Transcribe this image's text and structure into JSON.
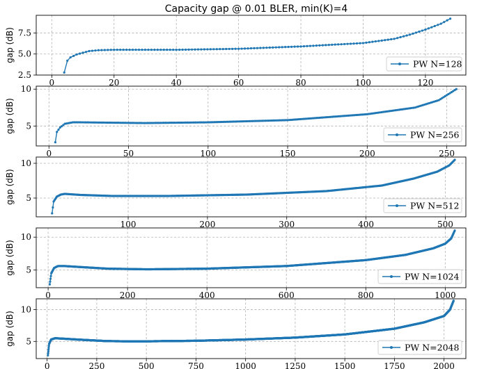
{
  "title": "Capacity gap @ 0.01 BLER, min(K)=4",
  "colors": {
    "series": "#1f77b4",
    "grid": "#b0b0b0",
    "frame": "#000000",
    "legend_edge": "#cccccc"
  },
  "chart_data": [
    {
      "type": "line",
      "ylabel": "gap (dB)",
      "legend": "PW N=128",
      "legend_position": "lower-right",
      "grid": true,
      "xlim": [
        -5,
        133
      ],
      "ylim": [
        2.5,
        9.6
      ],
      "xticks": [
        0,
        20,
        40,
        60,
        80,
        100,
        120
      ],
      "yticks": [
        2.5,
        5.0,
        7.5
      ],
      "ytick_labels": [
        "2.5",
        "5.0",
        "7.5"
      ],
      "n": 128,
      "curve": [
        [
          4,
          2.8
        ],
        [
          5,
          4.2
        ],
        [
          6,
          4.6
        ],
        [
          8,
          4.95
        ],
        [
          10,
          5.15
        ],
        [
          12,
          5.35
        ],
        [
          15,
          5.45
        ],
        [
          20,
          5.5
        ],
        [
          30,
          5.5
        ],
        [
          40,
          5.5
        ],
        [
          60,
          5.62
        ],
        [
          80,
          5.9
        ],
        [
          100,
          6.3
        ],
        [
          110,
          6.8
        ],
        [
          115,
          7.3
        ],
        [
          120,
          7.9
        ],
        [
          125,
          8.6
        ],
        [
          128,
          9.2
        ]
      ]
    },
    {
      "type": "line",
      "ylabel": "gap (dB)",
      "legend": "PW N=256",
      "legend_position": "lower-right",
      "grid": true,
      "xlim": [
        -8,
        262
      ],
      "ylim": [
        2.3,
        10.4
      ],
      "xticks": [
        0,
        50,
        100,
        150,
        200,
        250
      ],
      "yticks": [
        5,
        10
      ],
      "ytick_labels": [
        "5",
        "10"
      ],
      "n": 256,
      "curve": [
        [
          4,
          2.8
        ],
        [
          5,
          4.2
        ],
        [
          7,
          4.8
        ],
        [
          10,
          5.3
        ],
        [
          15,
          5.5
        ],
        [
          20,
          5.5
        ],
        [
          40,
          5.45
        ],
        [
          60,
          5.4
        ],
        [
          100,
          5.5
        ],
        [
          150,
          5.8
        ],
        [
          200,
          6.6
        ],
        [
          230,
          7.5
        ],
        [
          245,
          8.5
        ],
        [
          256,
          10.0
        ]
      ]
    },
    {
      "type": "line",
      "ylabel": "gap (dB)",
      "legend": "PW N=512",
      "legend_position": "lower-right",
      "grid": true,
      "xlim": [
        -16,
        526
      ],
      "ylim": [
        2.3,
        10.9
      ],
      "xticks": [
        100,
        200,
        300,
        400,
        500
      ],
      "yticks": [
        5,
        10
      ],
      "ytick_labels": [
        "5",
        "10"
      ],
      "n": 512,
      "curve": [
        [
          4,
          2.8
        ],
        [
          6,
          4.5
        ],
        [
          10,
          5.2
        ],
        [
          15,
          5.5
        ],
        [
          20,
          5.6
        ],
        [
          40,
          5.45
        ],
        [
          80,
          5.3
        ],
        [
          150,
          5.3
        ],
        [
          250,
          5.5
        ],
        [
          350,
          6.0
        ],
        [
          420,
          6.8
        ],
        [
          460,
          7.8
        ],
        [
          490,
          8.8
        ],
        [
          505,
          9.7
        ],
        [
          512,
          10.5
        ]
      ]
    },
    {
      "type": "line",
      "ylabel": "gap (dB)",
      "legend": "PW N=1024",
      "legend_position": "lower-right",
      "grid": true,
      "xlim": [
        -30,
        1052
      ],
      "ylim": [
        2.3,
        11.4
      ],
      "xticks": [
        0,
        200,
        400,
        600,
        800,
        1000
      ],
      "yticks": [
        5,
        10
      ],
      "ytick_labels": [
        "5",
        "10"
      ],
      "n": 1024,
      "curve": [
        [
          4,
          2.8
        ],
        [
          8,
          4.5
        ],
        [
          15,
          5.3
        ],
        [
          25,
          5.6
        ],
        [
          40,
          5.6
        ],
        [
          80,
          5.45
        ],
        [
          150,
          5.2
        ],
        [
          250,
          5.1
        ],
        [
          400,
          5.2
        ],
        [
          600,
          5.6
        ],
        [
          800,
          6.5
        ],
        [
          900,
          7.3
        ],
        [
          970,
          8.3
        ],
        [
          1000,
          9.0
        ],
        [
          1015,
          9.8
        ],
        [
          1024,
          11.0
        ]
      ]
    },
    {
      "type": "line",
      "ylabel": "gap (dB)",
      "legend": "PW N=2048",
      "legend_position": "lower-right",
      "grid": true,
      "xlim": [
        -55,
        2110
      ],
      "ylim": [
        2.3,
        11.7
      ],
      "xticks": [
        0,
        250,
        500,
        750,
        1000,
        1250,
        1500,
        1750,
        2000
      ],
      "yticks": [
        5,
        10
      ],
      "ytick_labels": [
        "5",
        "10"
      ],
      "n": 2048,
      "curve": [
        [
          4,
          2.8
        ],
        [
          10,
          4.6
        ],
        [
          20,
          5.3
        ],
        [
          40,
          5.5
        ],
        [
          70,
          5.45
        ],
        [
          150,
          5.3
        ],
        [
          300,
          5.05
        ],
        [
          450,
          5.0
        ],
        [
          750,
          5.1
        ],
        [
          1000,
          5.3
        ],
        [
          1250,
          5.6
        ],
        [
          1500,
          6.1
        ],
        [
          1750,
          7.0
        ],
        [
          1900,
          8.0
        ],
        [
          2000,
          9.0
        ],
        [
          2030,
          10.0
        ],
        [
          2048,
          11.4
        ]
      ]
    }
  ]
}
